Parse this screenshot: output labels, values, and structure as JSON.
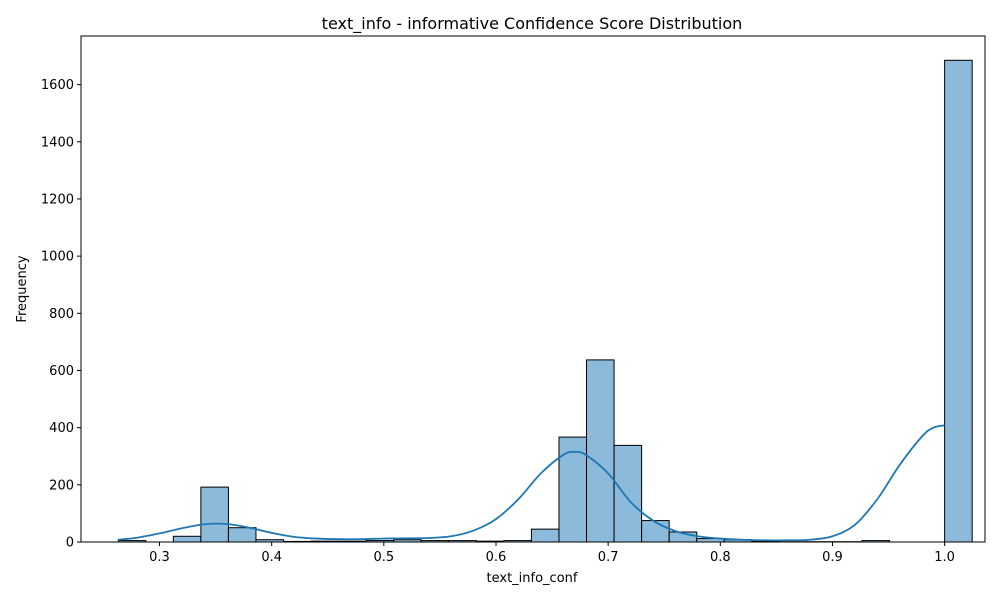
{
  "chart_data": {
    "type": "bar",
    "title": "text_info - informative Confidence Score Distribution",
    "xlabel": "text_info_conf",
    "ylabel": "Frequency",
    "xlim": [
      0.23,
      1.036
    ],
    "ylim": [
      0,
      1770
    ],
    "x_ticks": [
      0.3,
      0.4,
      0.5,
      0.6,
      0.7,
      0.8,
      0.9,
      1.0
    ],
    "x_tick_labels": [
      "0.3",
      "0.4",
      "0.5",
      "0.6",
      "0.7",
      "0.8",
      "0.9",
      "1.0"
    ],
    "y_ticks": [
      0,
      200,
      400,
      600,
      800,
      1000,
      1200,
      1400,
      1600
    ],
    "y_tick_labels": [
      "0",
      "200",
      "400",
      "600",
      "800",
      "1000",
      "1200",
      "1400",
      "1600"
    ],
    "grid": false,
    "bar_color": "#8cbadb",
    "edge_color": "#000000",
    "kde_color": "#1f77b4",
    "bins": {
      "start": 0.2632,
      "width": 0.02456,
      "counts": [
        5,
        0,
        20,
        192,
        50,
        8,
        2,
        3,
        3,
        5,
        8,
        5,
        5,
        3,
        5,
        45,
        367,
        637,
        338,
        75,
        35,
        12,
        8,
        3,
        1,
        1,
        1,
        5,
        0,
        0,
        1685
      ]
    },
    "kde": {
      "x": [
        0.263,
        0.28,
        0.3,
        0.32,
        0.34,
        0.36,
        0.38,
        0.4,
        0.42,
        0.44,
        0.46,
        0.48,
        0.5,
        0.52,
        0.54,
        0.56,
        0.58,
        0.6,
        0.62,
        0.64,
        0.66,
        0.67,
        0.68,
        0.7,
        0.72,
        0.74,
        0.76,
        0.78,
        0.8,
        0.82,
        0.84,
        0.86,
        0.88,
        0.9,
        0.92,
        0.94,
        0.96,
        0.98,
        0.99,
        1.0
      ],
      "y": [
        8,
        15,
        30,
        48,
        62,
        63,
        50,
        32,
        18,
        12,
        10,
        10,
        12,
        13,
        14,
        20,
        40,
        80,
        150,
        240,
        305,
        315,
        305,
        240,
        140,
        75,
        38,
        20,
        12,
        8,
        6,
        6,
        8,
        20,
        60,
        150,
        270,
        370,
        400,
        408
      ]
    }
  }
}
